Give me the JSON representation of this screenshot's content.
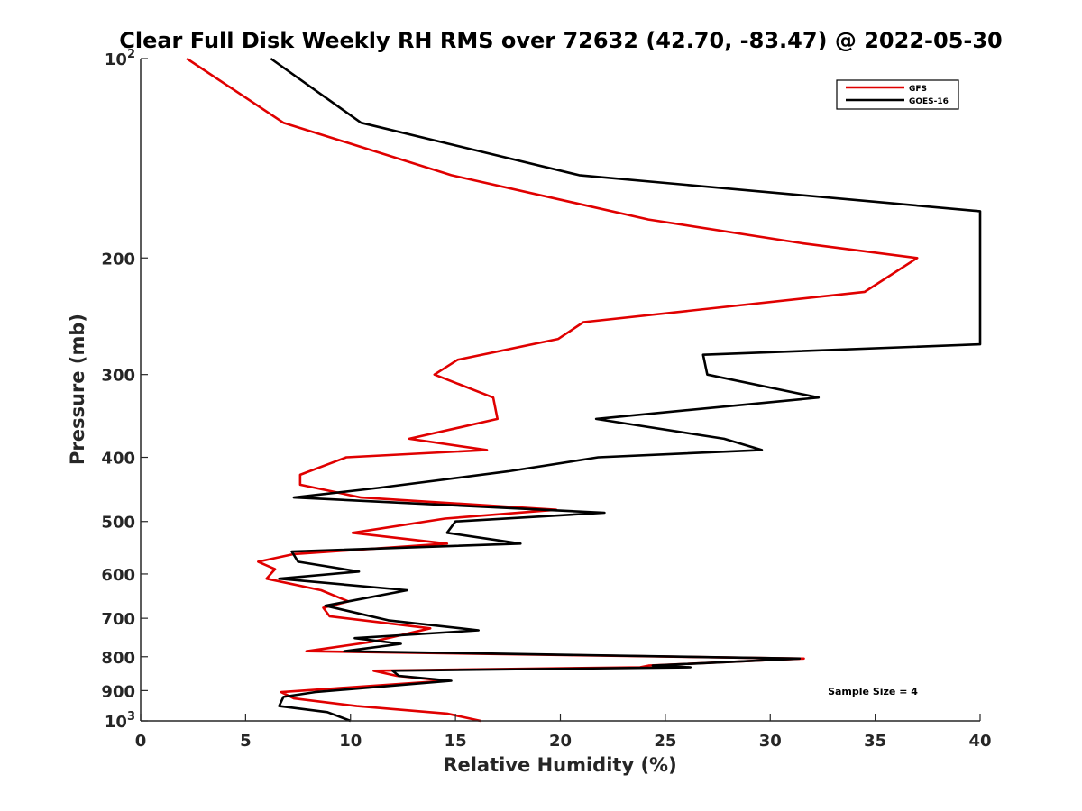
{
  "chart_data": {
    "type": "line",
    "title": "Clear Full Disk Weekly RH RMS over 72632 (42.70, -83.47) @ 2022-05-30",
    "xlabel": "Relative Humidity (%)",
    "ylabel": "Pressure (mb)",
    "xlim": [
      0,
      40
    ],
    "ylim": [
      100,
      1000
    ],
    "y_scale": "log",
    "y_reversed": true,
    "grid": false,
    "legend_placement": "top-right",
    "x_ticks": [
      "0",
      "5",
      "10",
      "15",
      "20",
      "25",
      "30",
      "35",
      "40"
    ],
    "y_ticks": [
      {
        "value": 100,
        "base": "10",
        "exp": "2"
      },
      {
        "value": 200,
        "label": "200"
      },
      {
        "value": 300,
        "label": "300"
      },
      {
        "value": 400,
        "label": "400"
      },
      {
        "value": 500,
        "label": "500"
      },
      {
        "value": 600,
        "label": "600"
      },
      {
        "value": 700,
        "label": "700"
      },
      {
        "value": 800,
        "label": "800"
      },
      {
        "value": 900,
        "label": "900"
      },
      {
        "value": 1000,
        "base": "10",
        "exp": "3"
      }
    ],
    "series": [
      {
        "name": "GFS",
        "color": "#e00000",
        "points": [
          [
            2.2,
            100
          ],
          [
            6.8,
            125
          ],
          [
            14.8,
            150
          ],
          [
            24.2,
            175
          ],
          [
            31.5,
            190
          ],
          [
            37,
            200
          ],
          [
            34.5,
            225
          ],
          [
            21.1,
            250
          ],
          [
            19.9,
            265
          ],
          [
            15.1,
            285
          ],
          [
            14,
            300
          ],
          [
            16.8,
            325
          ],
          [
            17,
            350
          ],
          [
            12.8,
            375
          ],
          [
            16.5,
            390
          ],
          [
            9.8,
            400
          ],
          [
            7.6,
            425
          ],
          [
            7.6,
            440
          ],
          [
            10.5,
            460
          ],
          [
            19.8,
            480
          ],
          [
            14.5,
            495
          ],
          [
            10.1,
            520
          ],
          [
            14.6,
            540
          ],
          [
            7.3,
            560
          ],
          [
            5.6,
            575
          ],
          [
            6.4,
            590
          ],
          [
            6,
            610
          ],
          [
            8.6,
            635
          ],
          [
            9.9,
            660
          ],
          [
            8.7,
            675
          ],
          [
            9,
            695
          ],
          [
            13.8,
            725
          ],
          [
            11,
            760
          ],
          [
            7.9,
            785
          ],
          [
            31.6,
            805
          ],
          [
            24.2,
            825
          ],
          [
            23.8,
            830
          ],
          [
            11.1,
            840
          ],
          [
            12.2,
            855
          ],
          [
            14.5,
            870
          ],
          [
            6.7,
            905
          ],
          [
            7.3,
            925
          ],
          [
            10.3,
            950
          ],
          [
            14.6,
            975
          ],
          [
            16.2,
            1000
          ]
        ]
      },
      {
        "name": "GOES-16",
        "color": "#000000",
        "points": [
          [
            6.2,
            100
          ],
          [
            10.5,
            125
          ],
          [
            20.9,
            150
          ],
          [
            40,
            170
          ],
          [
            40,
            270
          ],
          [
            26.8,
            280
          ],
          [
            27,
            300
          ],
          [
            32.3,
            325
          ],
          [
            21.7,
            350
          ],
          [
            27.8,
            375
          ],
          [
            29.6,
            390
          ],
          [
            21.8,
            400
          ],
          [
            17.5,
            420
          ],
          [
            11.3,
            445
          ],
          [
            7.3,
            460
          ],
          [
            22.1,
            485
          ],
          [
            15,
            500
          ],
          [
            14.6,
            520
          ],
          [
            18.1,
            540
          ],
          [
            7.2,
            555
          ],
          [
            7.5,
            575
          ],
          [
            10.4,
            595
          ],
          [
            6.6,
            610
          ],
          [
            12.7,
            635
          ],
          [
            8.8,
            670
          ],
          [
            11.8,
            705
          ],
          [
            16.1,
            730
          ],
          [
            10.2,
            750
          ],
          [
            12.4,
            765
          ],
          [
            9.7,
            785
          ],
          [
            31.4,
            805
          ],
          [
            24.4,
            825
          ],
          [
            26.2,
            830
          ],
          [
            12,
            840
          ],
          [
            12.3,
            855
          ],
          [
            14.8,
            870
          ],
          [
            8.3,
            905
          ],
          [
            6.8,
            920
          ],
          [
            6.6,
            950
          ],
          [
            8.9,
            970
          ],
          [
            10,
            1000
          ]
        ]
      }
    ],
    "annotations": [
      "Sample Size = 4"
    ]
  }
}
